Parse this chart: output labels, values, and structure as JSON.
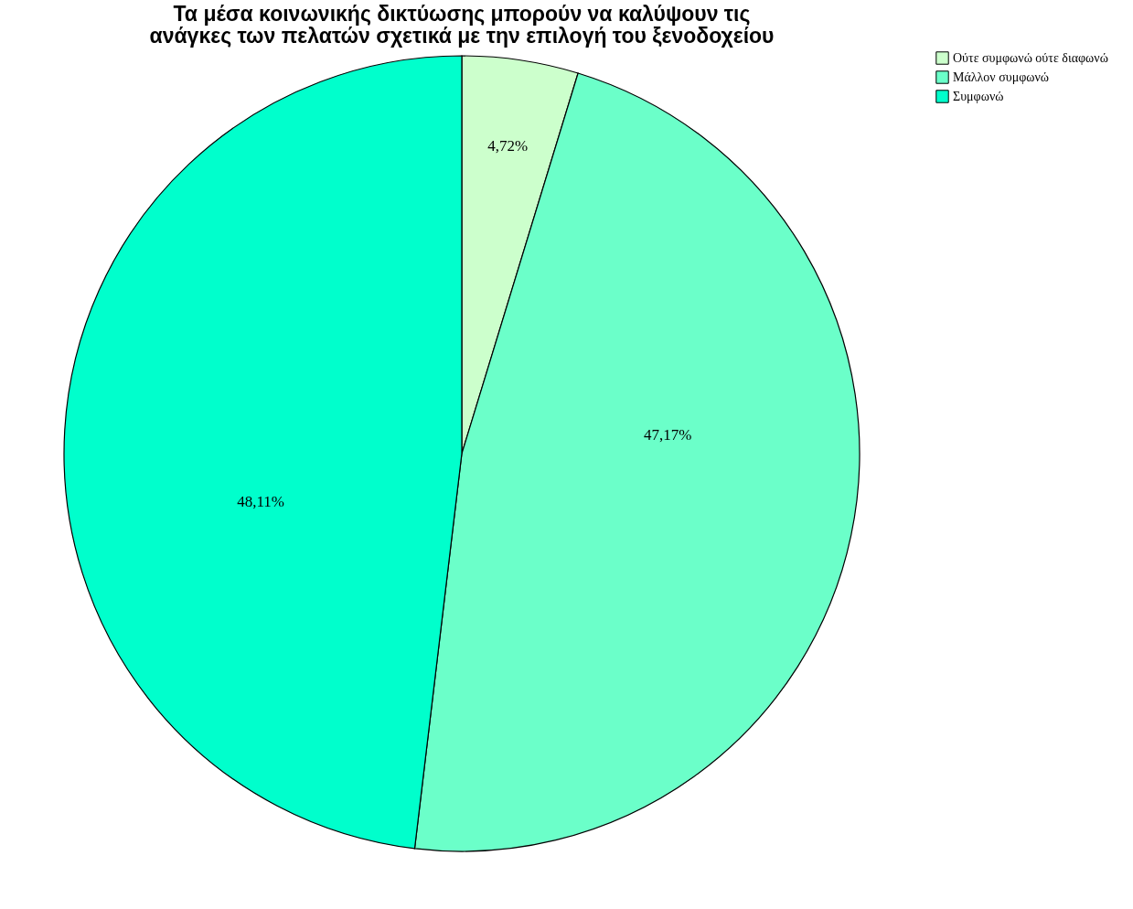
{
  "chart_data": {
    "type": "pie",
    "title": "Τα μέσα κοινωνικής δικτύωσης μπορούν να καλύψουν τις ανάγκες των πελατών σχετικά με την επιλογή του ξενοδοχείου",
    "categories": [
      "Ούτε συμφωνώ ούτε διαφωνώ",
      "Μάλλον συμφωνώ",
      "Συμφωνώ"
    ],
    "values": [
      4.72,
      47.17,
      48.11
    ],
    "colors": [
      "#ccffcc",
      "#6bffc9",
      "#00ffcc"
    ],
    "value_labels": [
      "4,72%",
      "47,17%",
      "48,11%"
    ],
    "legend": "top right"
  }
}
